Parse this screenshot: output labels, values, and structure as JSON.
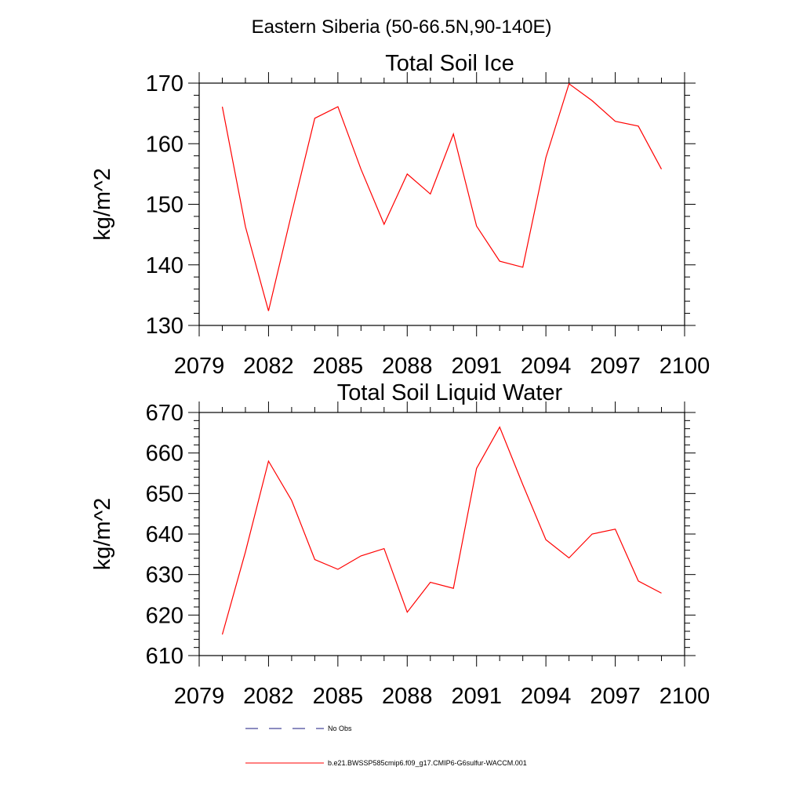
{
  "figure": {
    "title": "Eastern Siberia (50-66.5N,90-140E)"
  },
  "legend": {
    "placement": "bottom",
    "entries": [
      {
        "label": "No Obs",
        "style": "dashed",
        "color": "#1a1a80"
      },
      {
        "label": "b.e21.BWSSP585cmip6.f09_g17.CMIP6-G6sulfur-WACCM.001",
        "style": "solid",
        "color": "#ff0000"
      }
    ]
  },
  "chart_data": [
    {
      "type": "line",
      "title": "Total Soil Ice",
      "xlabel": "",
      "ylabel": "kg/m^2",
      "xlim": [
        2079,
        2100
      ],
      "ylim": [
        130,
        170
      ],
      "xticks": [
        2079,
        2082,
        2085,
        2088,
        2091,
        2094,
        2097,
        2100
      ],
      "yticks": [
        130,
        140,
        150,
        160,
        170
      ],
      "grid": false,
      "x": [
        2080,
        2081,
        2082,
        2083,
        2084,
        2085,
        2086,
        2087,
        2088,
        2089,
        2090,
        2091,
        2092,
        2093,
        2094,
        2095,
        2096,
        2097,
        2098,
        2099
      ],
      "series": [
        {
          "name": "b.e21.BWSSP585cmip6.f09_g17.CMIP6-G6sulfur-WACCM.001",
          "color": "#ff0000",
          "values": [
            166.1,
            146.3,
            132.4,
            148.5,
            164.2,
            166.1,
            155.8,
            146.7,
            155.0,
            151.7,
            161.6,
            146.4,
            140.6,
            139.6,
            157.7,
            169.9,
            167.1,
            163.7,
            162.9,
            155.8
          ]
        }
      ]
    },
    {
      "type": "line",
      "title": "Total Soil Liquid Water",
      "xlabel": "",
      "ylabel": "kg/m^2",
      "xlim": [
        2079,
        2100
      ],
      "ylim": [
        610,
        670
      ],
      "xticks": [
        2079,
        2082,
        2085,
        2088,
        2091,
        2094,
        2097,
        2100
      ],
      "yticks": [
        610,
        620,
        630,
        640,
        650,
        660,
        670
      ],
      "grid": false,
      "x": [
        2080,
        2081,
        2082,
        2083,
        2084,
        2085,
        2086,
        2087,
        2088,
        2089,
        2090,
        2091,
        2092,
        2093,
        2094,
        2095,
        2096,
        2097,
        2098,
        2099
      ],
      "series": [
        {
          "name": "b.e21.BWSSP585cmip6.f09_g17.CMIP6-G6sulfur-WACCM.001",
          "color": "#ff0000",
          "values": [
            615.2,
            635.6,
            658.0,
            648.3,
            633.7,
            631.3,
            634.6,
            636.4,
            620.7,
            628.1,
            626.6,
            656.2,
            666.4,
            652.2,
            638.6,
            634.1,
            640.0,
            641.2,
            628.4,
            625.4
          ]
        }
      ]
    }
  ]
}
